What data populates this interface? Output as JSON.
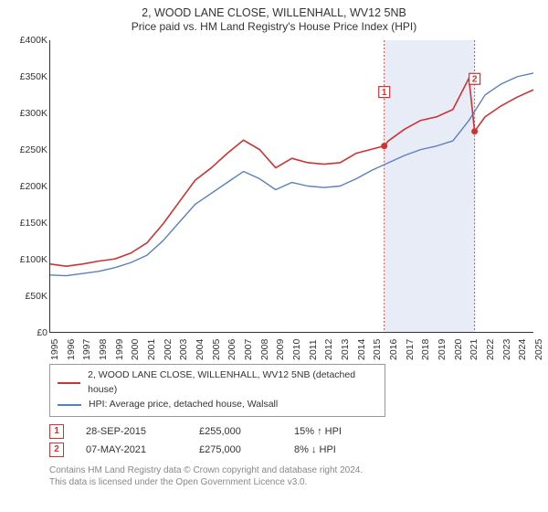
{
  "title_line1": "2, WOOD LANE CLOSE, WILLENHALL, WV12 5NB",
  "title_line2": "Price paid vs. HM Land Registry's House Price Index (HPI)",
  "chart": {
    "x_years": [
      1995,
      1996,
      1997,
      1998,
      1999,
      2000,
      2001,
      2002,
      2003,
      2004,
      2005,
      2006,
      2007,
      2008,
      2009,
      2010,
      2011,
      2012,
      2013,
      2014,
      2015,
      2016,
      2017,
      2018,
      2019,
      2020,
      2021,
      2022,
      2023,
      2024,
      2025
    ],
    "xmin": 1995,
    "xmax": 2025,
    "ymin": 0,
    "ymax": 400000,
    "yticks": [
      0,
      50000,
      100000,
      150000,
      200000,
      250000,
      300000,
      350000,
      400000
    ],
    "ytick_labels": [
      "£0",
      "£50K",
      "£100K",
      "£150K",
      "£200K",
      "£250K",
      "£300K",
      "£350K",
      "£400K"
    ],
    "band": {
      "from": 2015.74,
      "to": 2021.35
    },
    "colors": {
      "price": "#cc3333",
      "hpi": "#5a7fbf",
      "band": "#e8ecf7",
      "vline": "#cc4444",
      "axis": "#333333",
      "sale_box": "#cc3333"
    },
    "line_widths": {
      "price": 1.6,
      "hpi": 1.4
    },
    "hpi_series": [
      [
        1995,
        78000
      ],
      [
        1996,
        77000
      ],
      [
        1997,
        80000
      ],
      [
        1998,
        83000
      ],
      [
        1999,
        88000
      ],
      [
        2000,
        95000
      ],
      [
        2001,
        105000
      ],
      [
        2002,
        125000
      ],
      [
        2003,
        150000
      ],
      [
        2004,
        175000
      ],
      [
        2005,
        190000
      ],
      [
        2006,
        205000
      ],
      [
        2007,
        220000
      ],
      [
        2008,
        210000
      ],
      [
        2009,
        195000
      ],
      [
        2010,
        205000
      ],
      [
        2011,
        200000
      ],
      [
        2012,
        198000
      ],
      [
        2013,
        200000
      ],
      [
        2014,
        210000
      ],
      [
        2015,
        222000
      ],
      [
        2016,
        232000
      ],
      [
        2017,
        242000
      ],
      [
        2018,
        250000
      ],
      [
        2019,
        255000
      ],
      [
        2020,
        262000
      ],
      [
        2021,
        290000
      ],
      [
        2022,
        325000
      ],
      [
        2023,
        340000
      ],
      [
        2024,
        350000
      ],
      [
        2025,
        355000
      ]
    ],
    "price_series": [
      [
        1995,
        93000
      ],
      [
        1996,
        90000
      ],
      [
        1997,
        93000
      ],
      [
        1998,
        97000
      ],
      [
        1999,
        100000
      ],
      [
        2000,
        108000
      ],
      [
        2001,
        122000
      ],
      [
        2002,
        148000
      ],
      [
        2003,
        178000
      ],
      [
        2004,
        208000
      ],
      [
        2005,
        225000
      ],
      [
        2006,
        245000
      ],
      [
        2007,
        263000
      ],
      [
        2008,
        250000
      ],
      [
        2009,
        225000
      ],
      [
        2010,
        238000
      ],
      [
        2011,
        232000
      ],
      [
        2012,
        230000
      ],
      [
        2013,
        232000
      ],
      [
        2014,
        245000
      ],
      [
        2015.74,
        255000
      ],
      [
        2016,
        262000
      ],
      [
        2017,
        278000
      ],
      [
        2018,
        290000
      ],
      [
        2019,
        295000
      ],
      [
        2020,
        305000
      ],
      [
        2021,
        348000
      ],
      [
        2021.35,
        275000
      ],
      [
        2022,
        295000
      ],
      [
        2023,
        310000
      ],
      [
        2024,
        322000
      ],
      [
        2025,
        332000
      ]
    ],
    "sales": [
      {
        "n": "1",
        "year": 2015.74,
        "price": 255000,
        "label_y_offset": 74000
      },
      {
        "n": "2",
        "year": 2021.35,
        "price": 275000,
        "label_y_offset": 72000
      }
    ],
    "box_size": 12,
    "dot_radius": 3.5
  },
  "legend": {
    "series": [
      {
        "label": "2, WOOD LANE CLOSE, WILLENHALL, WV12 5NB (detached house)",
        "color": "#cc3333"
      },
      {
        "label": "HPI: Average price, detached house, Walsall",
        "color": "#5a7fbf"
      }
    ]
  },
  "sales_table": {
    "rows": [
      {
        "n": "1",
        "date": "28-SEP-2015",
        "price": "£255,000",
        "delta": "15% ↑ HPI"
      },
      {
        "n": "2",
        "date": "07-MAY-2021",
        "price": "£275,000",
        "delta": "8% ↓ HPI"
      }
    ]
  },
  "footnote_line1": "Contains HM Land Registry data © Crown copyright and database right 2024.",
  "footnote_line2": "This data is licensed under the Open Government Licence v3.0."
}
